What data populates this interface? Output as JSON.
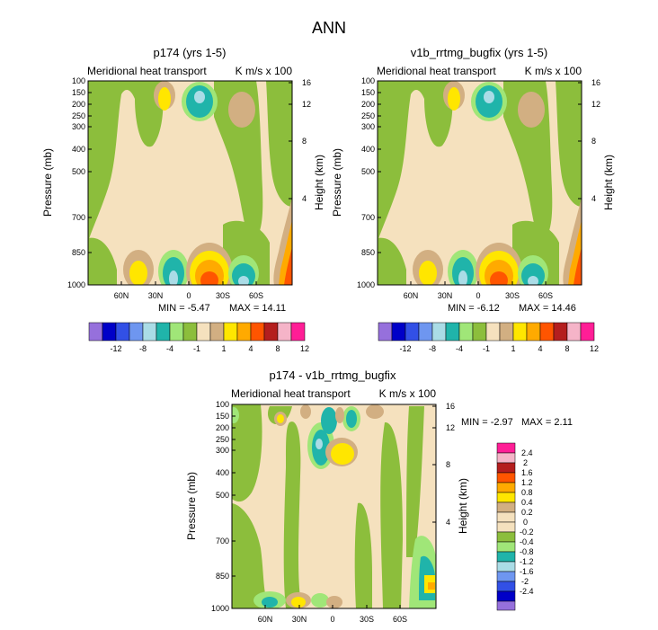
{
  "title": "ANN",
  "colors": {
    "cool": [
      "#9670DC",
      "#0000C8",
      "#3250E6",
      "#6E96F0",
      "#AADCE6",
      "#20B4AA",
      "#A0E678",
      "#8CBE3C"
    ],
    "neutral": "#F5E1BE",
    "warm": [
      "#D2AF82",
      "#FFE600",
      "#FFAA00",
      "#FF5500",
      "#B41E1E",
      "#F5B4C8",
      "#FF1E96"
    ]
  },
  "chart_data": [
    {
      "type": "contour",
      "title": "p174 (yrs 1-5)",
      "subtitle_left": "Meridional heat transport",
      "subtitle_right": "K m/s x 100",
      "ylabel": "Pressure (mb)",
      "ylabel_right": "Height (km)",
      "x_ticks": [
        "60N",
        "30N",
        "0",
        "30S",
        "60S"
      ],
      "x_values": [
        60,
        30,
        0,
        -30,
        -60
      ],
      "y_ticks": [
        "100",
        "150",
        "200",
        "250",
        "300",
        "400",
        "500",
        "700",
        "850",
        "1000"
      ],
      "y_values": [
        100,
        150,
        200,
        250,
        300,
        400,
        500,
        700,
        850,
        1000
      ],
      "height_ticks": [
        "16",
        "12",
        "8",
        "4"
      ],
      "height_values": [
        16,
        12,
        8,
        4
      ],
      "min_label": "MIN = -5.47",
      "max_label": "MAX = 14.11",
      "colorbar_labels": [
        "-12",
        "-8",
        "-4",
        "-1",
        "1",
        "4",
        "8",
        "12"
      ]
    },
    {
      "type": "contour",
      "title": "v1b_rrtmg_bugfix (yrs 1-5)",
      "subtitle_left": "Meridional heat transport",
      "subtitle_right": "K m/s x 100",
      "ylabel": "Pressure (mb)",
      "ylabel_right": "Height (km)",
      "x_ticks": [
        "60N",
        "30N",
        "0",
        "30S",
        "60S"
      ],
      "x_values": [
        60,
        30,
        0,
        -30,
        -60
      ],
      "y_ticks": [
        "100",
        "150",
        "200",
        "250",
        "300",
        "400",
        "500",
        "700",
        "850",
        "1000"
      ],
      "y_values": [
        100,
        150,
        200,
        250,
        300,
        400,
        500,
        700,
        850,
        1000
      ],
      "height_ticks": [
        "16",
        "12",
        "8",
        "4"
      ],
      "height_values": [
        16,
        12,
        8,
        4
      ],
      "min_label": "MIN = -6.12",
      "max_label": "MAX = 14.46",
      "colorbar_labels": [
        "-12",
        "-8",
        "-4",
        "-1",
        "1",
        "4",
        "8",
        "12"
      ]
    },
    {
      "type": "contour",
      "title": "p174 - v1b_rrtmg_bugfix",
      "subtitle_left": "Meridional heat transport",
      "subtitle_right": "K m/s x 100",
      "ylabel": "Pressure (mb)",
      "ylabel_right": "Height (km)",
      "x_ticks": [
        "60N",
        "30N",
        "0",
        "30S",
        "60S"
      ],
      "x_values": [
        60,
        30,
        0,
        -30,
        -60
      ],
      "y_ticks": [
        "100",
        "150",
        "200",
        "250",
        "300",
        "400",
        "500",
        "700",
        "850",
        "1000"
      ],
      "y_values": [
        100,
        150,
        200,
        250,
        300,
        400,
        500,
        700,
        850,
        1000
      ],
      "height_ticks": [
        "16",
        "12",
        "8",
        "4"
      ],
      "height_values": [
        16,
        12,
        8,
        4
      ],
      "min_label": "MIN = -2.97",
      "max_label": "MAX = 2.11",
      "colorbar_labels": [
        "2.4",
        "2",
        "1.6",
        "1.2",
        "0.8",
        "0.4",
        "0.2",
        "0",
        "-0.2",
        "-0.4",
        "-0.8",
        "-1.2",
        "-1.6",
        "-2",
        "-2.4"
      ]
    }
  ]
}
